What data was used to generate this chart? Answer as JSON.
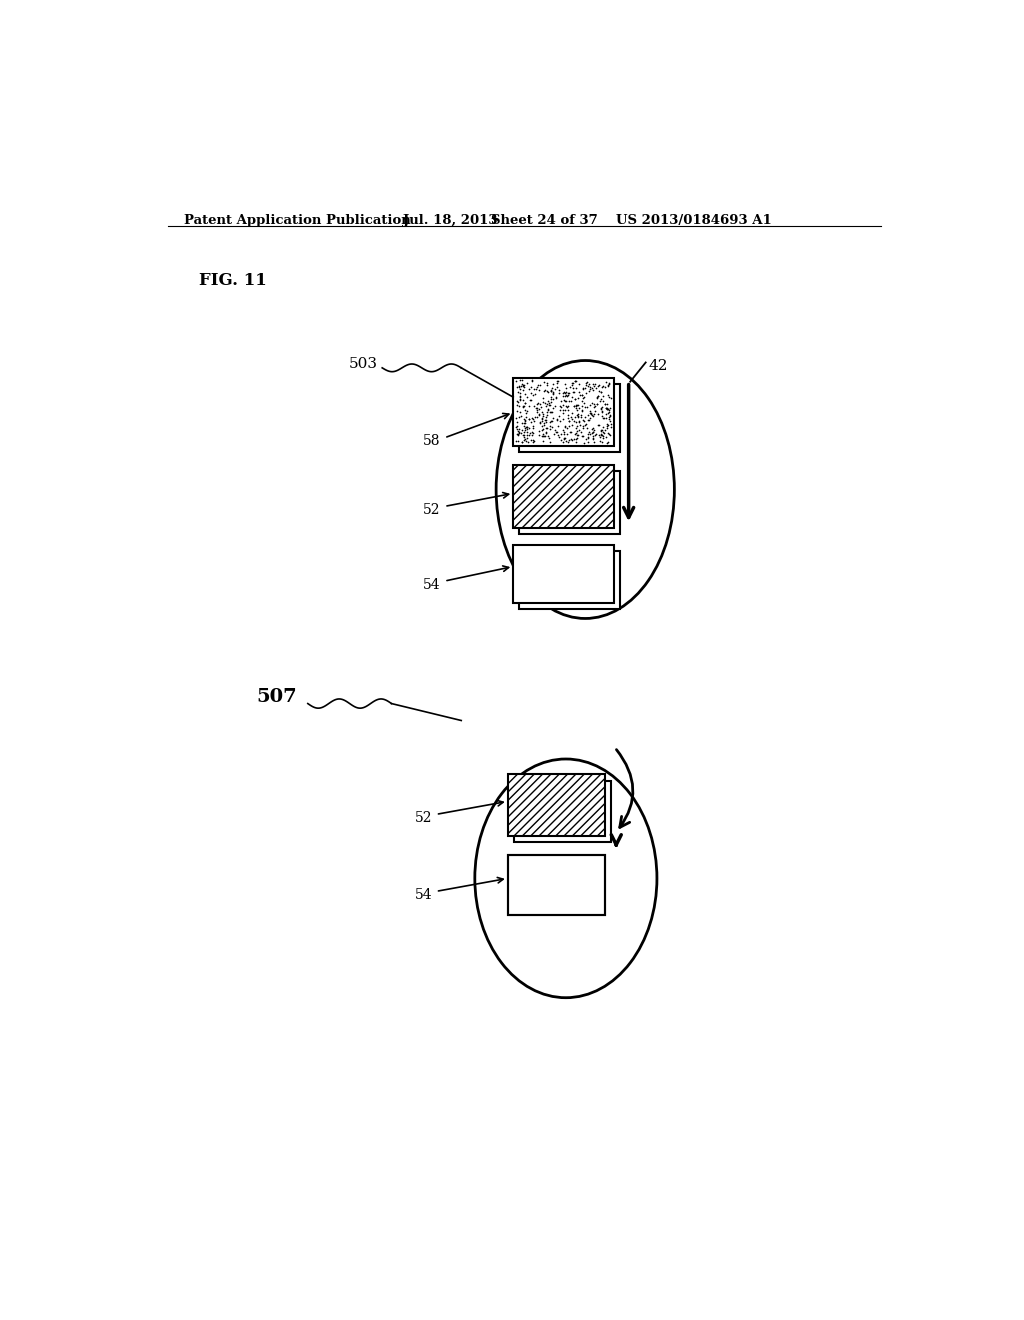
{
  "background_color": "#ffffff",
  "header_text": "Patent Application Publication",
  "header_date": "Jul. 18, 2013",
  "header_sheet": "Sheet 24 of 37",
  "header_patent": "US 2013/0184693 A1",
  "fig_label": "FIG. 11",
  "label_503": "503",
  "label_507": "507",
  "label_42": "42",
  "label_52_top": "52",
  "label_54_top": "54",
  "label_58": "58",
  "label_52_bot": "52",
  "label_54_bot": "54"
}
